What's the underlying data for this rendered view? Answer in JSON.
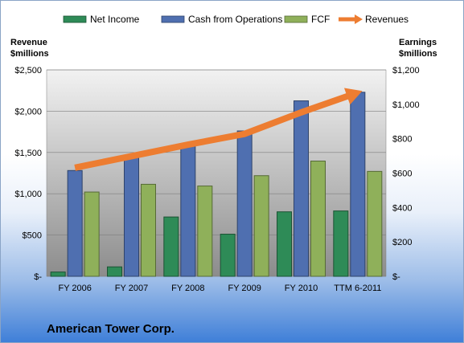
{
  "chart_data": {
    "type": "bar",
    "title": "American Tower Corp.",
    "categories": [
      "FY 2006",
      "FY 2007",
      "FY 2008",
      "FY 2009",
      "FY 2010",
      "TTM 6-2011"
    ],
    "left_axis": {
      "label_line1": "Revenue",
      "label_line2": "$millions",
      "ylim": [
        0,
        2500
      ],
      "ticks": [
        0,
        500,
        1000,
        1500,
        2000,
        2500
      ],
      "tick_labels": [
        "$-",
        "$500",
        "$1,000",
        "$1,500",
        "$2,000",
        "$2,500"
      ]
    },
    "right_axis": {
      "label_line1": "Earnings",
      "label_line2": "$millions",
      "ylim": [
        0,
        1200
      ],
      "ticks": [
        0,
        200,
        400,
        600,
        800,
        1000,
        1200
      ],
      "tick_labels": [
        "$-",
        "$200",
        "$400",
        "$600",
        "$800",
        "$1,000",
        "$1,200"
      ]
    },
    "series": [
      {
        "name": "Net Income",
        "type": "bar",
        "axis": "right",
        "color": "#2e8b57",
        "values": [
          25,
          55,
          345,
          245,
          375,
          380
        ]
      },
      {
        "name": "Cash from Operations",
        "type": "bar",
        "axis": "right",
        "color": "#4f6fb0",
        "values": [
          615,
          690,
          770,
          845,
          1020,
          1070
        ]
      },
      {
        "name": "FCF",
        "type": "bar",
        "axis": "right",
        "color": "#8fb05a",
        "values": [
          490,
          535,
          525,
          585,
          670,
          610
        ]
      },
      {
        "name": "Revenues",
        "type": "line",
        "axis": "left",
        "color": "#ed7d31",
        "values": [
          1315,
          1455,
          1595,
          1725,
          1985,
          2225
        ]
      }
    ],
    "legend_position": "top",
    "grid": true
  }
}
